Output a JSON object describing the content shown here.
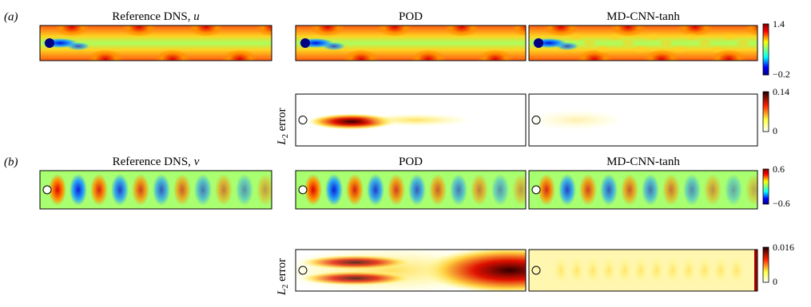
{
  "panels": [
    {
      "label": "(a)",
      "titles": [
        {
          "text": "Reference DNS, ",
          "variable": "u"
        },
        {
          "text": "POD"
        },
        {
          "text": "MD-CNN-tanh"
        }
      ],
      "colorbar": {
        "max": "1.4",
        "min": "−0.2"
      },
      "error": {
        "symbol": "L",
        "subscript": "2",
        "text": " error",
        "colorbar": {
          "max": "0.14",
          "min": "0"
        }
      }
    },
    {
      "label": "(b)",
      "titles": [
        {
          "text": "Reference DNS, ",
          "variable": "v"
        },
        {
          "text": "POD"
        },
        {
          "text": "MD-CNN-tanh"
        }
      ],
      "colorbar": {
        "max": "0.6",
        "min": "−0.6"
      },
      "error": {
        "symbol": "L",
        "subscript": "2",
        "text": " error",
        "colorbar": {
          "max": "0.016",
          "min": "0"
        }
      }
    }
  ]
}
